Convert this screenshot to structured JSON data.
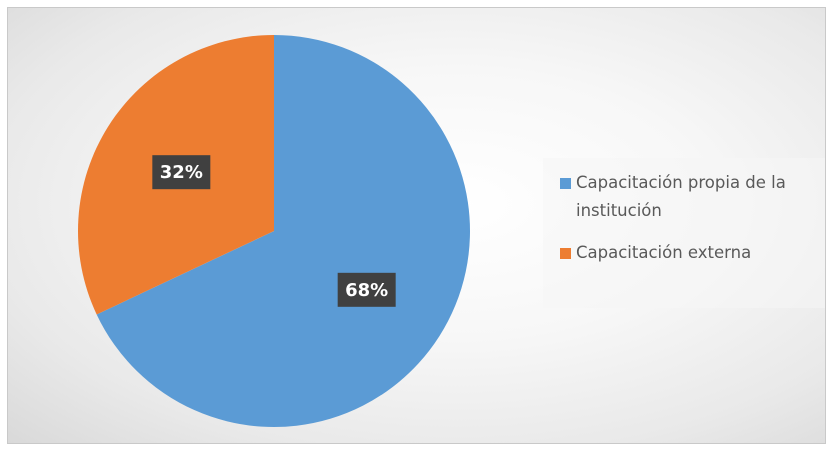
{
  "chart_data": {
    "type": "pie",
    "title": "",
    "slices": [
      {
        "label": "Capacitación propia de la institución",
        "value": 68,
        "display": "68%",
        "color": "#5b9bd5"
      },
      {
        "label": "Capacitación externa",
        "value": 32,
        "display": "32%",
        "color": "#ed7d31"
      }
    ],
    "legend_position": "right",
    "data_label_background": "#404040",
    "data_label_color": "#ffffff"
  }
}
